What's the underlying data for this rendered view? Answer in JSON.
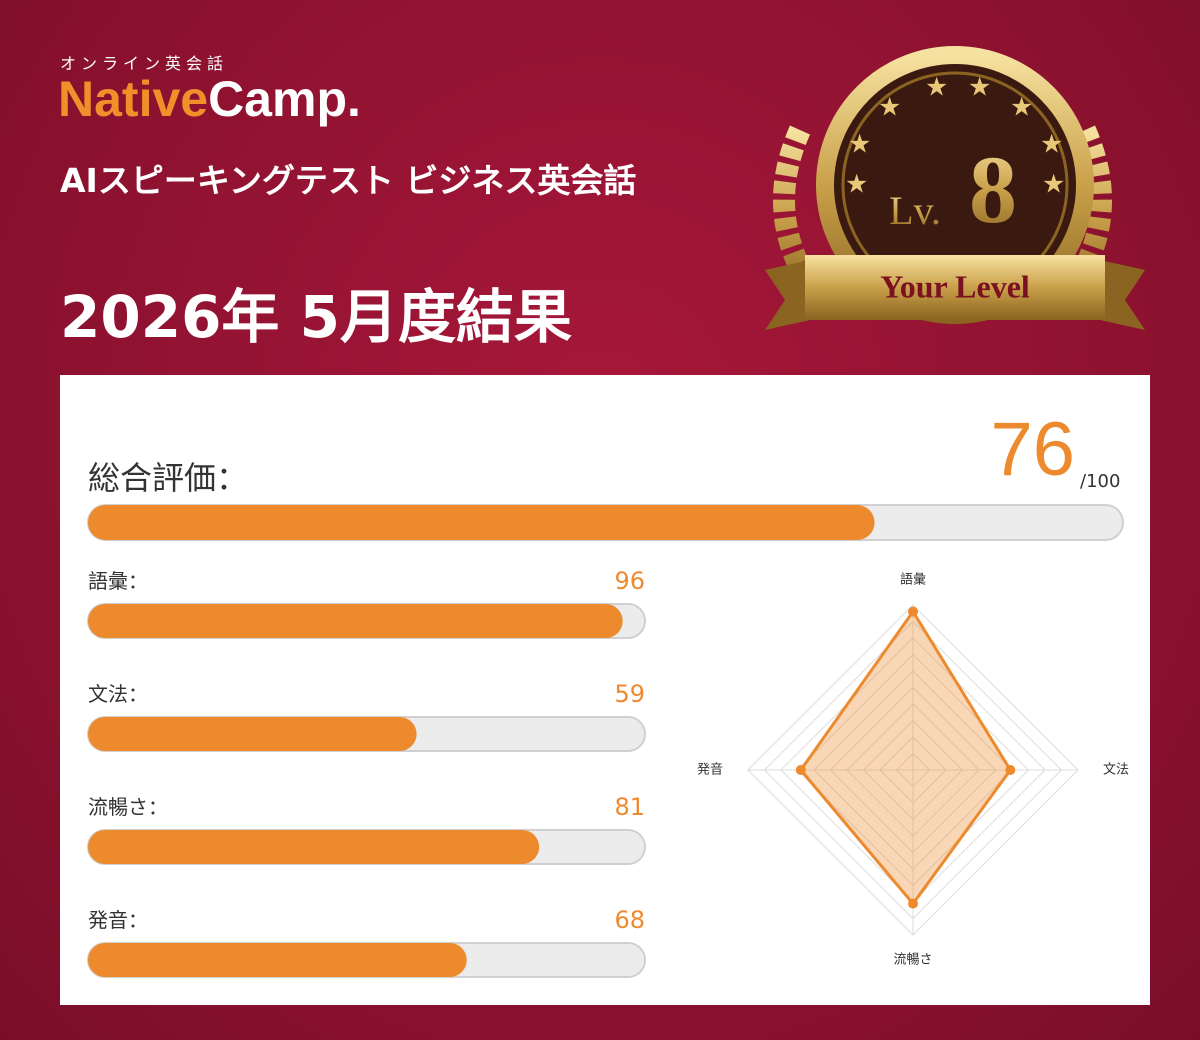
{
  "header": {
    "tagline": "オンライン英会話",
    "brand_first": "Native",
    "brand_second": "Camp.",
    "title": "AIスピーキングテスト ビジネス英会話",
    "period": "2026年 5月度結果"
  },
  "badge": {
    "level_prefix": "Lv.",
    "level": 8,
    "caption": "Your Level"
  },
  "overall": {
    "label": "総合評価",
    "score": 76,
    "max": {
      "value": 100,
      "label": "/100"
    }
  },
  "label_suffix": "：",
  "chart_data": {
    "type": "radar",
    "categories": [
      "語彙",
      "文法",
      "流暢さ",
      "発音"
    ],
    "values": [
      96,
      59,
      81,
      68
    ],
    "color": "#ee8a2e",
    "rlim": [
      0,
      100
    ],
    "rticks": [
      10,
      20,
      30,
      40,
      50,
      60,
      70,
      80,
      90,
      100
    ],
    "grid": true
  }
}
